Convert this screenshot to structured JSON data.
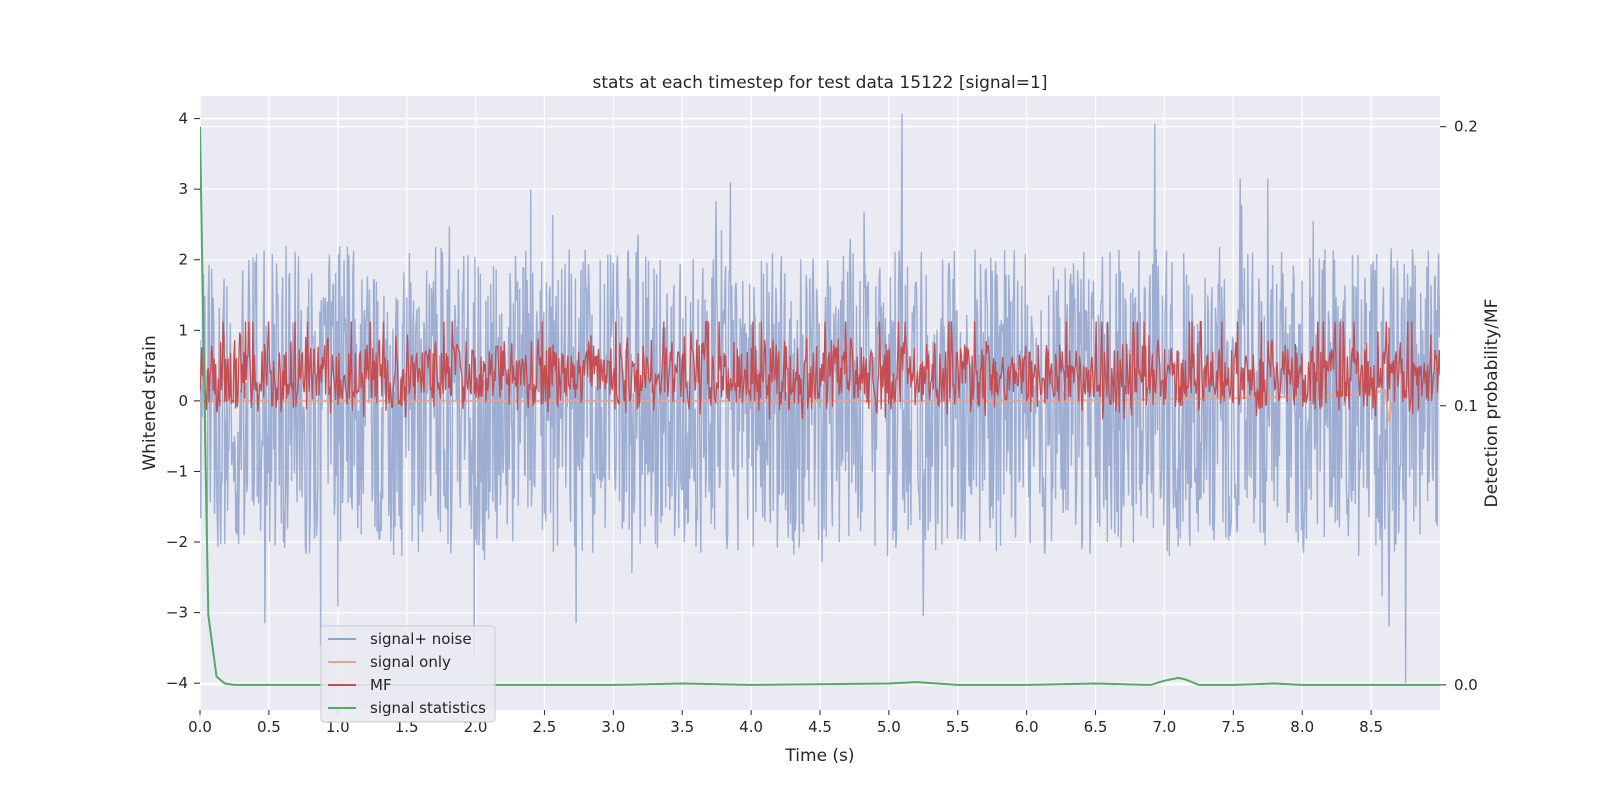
{
  "chart_data": {
    "type": "line",
    "title": "stats at each timestep for test data 15122 [signal=1]",
    "xlabel": "Time (s)",
    "ylabel_left": "Whitened strain",
    "ylabel_right": "Detection probability/MF",
    "xlim": [
      0.0,
      9.0
    ],
    "ylim_left": [
      -4.38,
      4.32
    ],
    "ylim_right": [
      -0.009,
      0.211
    ],
    "x_ticks": [
      "0.0",
      "0.5",
      "1.0",
      "1.5",
      "2.0",
      "2.5",
      "3.0",
      "3.5",
      "4.0",
      "4.5",
      "5.0",
      "5.5",
      "6.0",
      "6.5",
      "7.0",
      "7.5",
      "8.0",
      "8.5"
    ],
    "y_ticks_left": [
      "−4",
      "−3",
      "−2",
      "−1",
      "0",
      "1",
      "2",
      "3",
      "4"
    ],
    "y_ticks_right": [
      "0.0",
      "0.1",
      "0.2"
    ],
    "grid": true,
    "legend_position": "lower-left",
    "colors": {
      "background": "#eaeaf2",
      "grid": "#ffffff",
      "noise": "#8fa3cc",
      "signal_only": "#e8a488",
      "mf": "#c44e52",
      "stats": "#55a868"
    },
    "series": [
      {
        "name": "signal+ noise",
        "axis": "left",
        "description_of_range": "dense noise, approx -2.5 to 2.5 with spikes",
        "noise_envelope": {
          "lower": -1.6,
          "upper": 1.6
        },
        "notable_points": [
          {
            "x": 0.47,
            "y": -3.15
          },
          {
            "x": 1.99,
            "y": -3.6
          },
          {
            "x": 2.4,
            "y": 3.0
          },
          {
            "x": 3.85,
            "y": 3.1
          },
          {
            "x": 5.25,
            "y": -3.05
          },
          {
            "x": 6.93,
            "y": 3.93
          },
          {
            "x": 7.55,
            "y": 3.15
          },
          {
            "x": 7.75,
            "y": 3.15
          },
          {
            "x": 8.63,
            "y": -3.2
          },
          {
            "x": 8.75,
            "y": -4.0
          }
        ]
      },
      {
        "name": "signal only",
        "axis": "left",
        "x": [
          0.0,
          6.0,
          7.0,
          7.5,
          8.0,
          8.3,
          8.5,
          8.6,
          8.63,
          8.65
        ],
        "y": [
          0.0,
          0.0,
          0.02,
          0.04,
          0.06,
          0.08,
          0.1,
          0.15,
          -0.3,
          0.0
        ]
      },
      {
        "name": "MF",
        "axis": "right",
        "band_center": 0.111,
        "band_halfwidth": 0.012,
        "notable_points": [
          {
            "x": 8.63,
            "y": 0.128
          }
        ]
      },
      {
        "name": "signal statistics",
        "axis": "right",
        "x": [
          0.0,
          0.03,
          0.06,
          0.12,
          0.18,
          0.25,
          0.4,
          1.0,
          2.0,
          3.0,
          3.5,
          4.0,
          5.0,
          5.2,
          5.5,
          6.0,
          6.5,
          6.9,
          7.0,
          7.1,
          7.15,
          7.25,
          7.5,
          7.8,
          8.0,
          8.5,
          9.0
        ],
        "y": [
          0.2,
          0.11,
          0.025,
          0.003,
          0.0005,
          0.0,
          0.0,
          0.0,
          0.0,
          0.0,
          0.0005,
          0.0,
          0.0005,
          0.001,
          0.0,
          0.0,
          0.0005,
          0.0,
          0.0015,
          0.0025,
          0.002,
          0.0,
          0.0,
          0.0005,
          0.0,
          0.0,
          0.0
        ]
      }
    ]
  }
}
